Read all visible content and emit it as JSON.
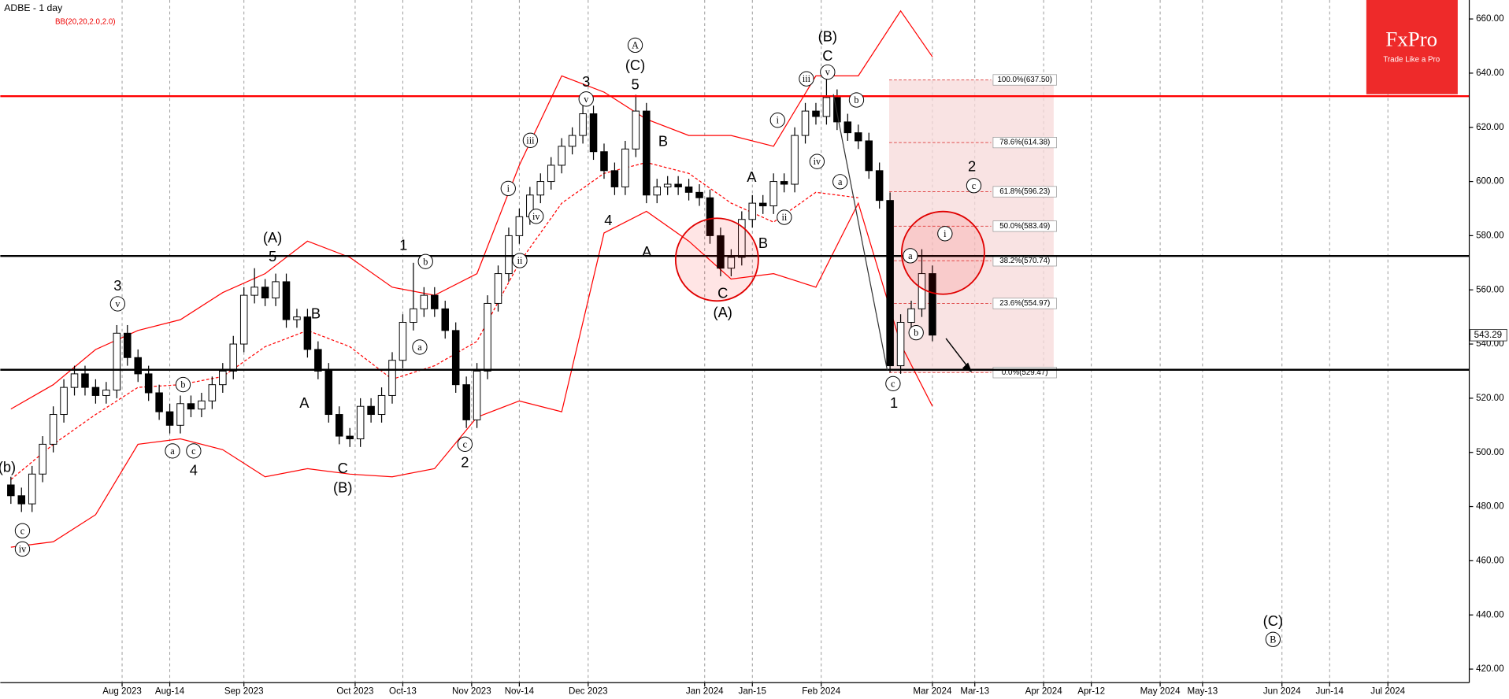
{
  "chart_data": {
    "type": "candlestick",
    "title": "ADBE - 1 day",
    "subtitle": "BB(20,20,2.0,2.0)",
    "logo": {
      "name": "FxPro",
      "tagline": "Trade Like a Pro",
      "color": "#ee2a2a"
    },
    "up_color": "#ffffff",
    "down_color": "#000000",
    "x": [
      "2023-07-03",
      "2023-07-05",
      "2023-07-07",
      "2023-07-11",
      "2023-07-13",
      "2023-07-17",
      "2023-07-19",
      "2023-07-21",
      "2023-07-25",
      "2023-07-27",
      "2023-07-31",
      "2023-08-02",
      "2023-08-04",
      "2023-08-08",
      "2023-08-10",
      "2023-08-14",
      "2023-08-16",
      "2023-08-18",
      "2023-08-22",
      "2023-08-24",
      "2023-08-28",
      "2023-08-30",
      "2023-09-01",
      "2023-09-05",
      "2023-09-07",
      "2023-09-11",
      "2023-09-13",
      "2023-09-15",
      "2023-09-19",
      "2023-09-21",
      "2023-09-25",
      "2023-09-27",
      "2023-09-29",
      "2023-10-03",
      "2023-10-05",
      "2023-10-09",
      "2023-10-11",
      "2023-10-13",
      "2023-10-17",
      "2023-10-19",
      "2023-10-23",
      "2023-10-25",
      "2023-10-27",
      "2023-10-31",
      "2023-11-02",
      "2023-11-06",
      "2023-11-08",
      "2023-11-10",
      "2023-11-14",
      "2023-11-16",
      "2023-11-20",
      "2023-11-22",
      "2023-11-24",
      "2023-11-28",
      "2023-11-30",
      "2023-12-04",
      "2023-12-06",
      "2023-12-08",
      "2023-12-12",
      "2023-12-14",
      "2023-12-18",
      "2023-12-20",
      "2023-12-22",
      "2023-12-26",
      "2023-12-28",
      "2024-01-01",
      "2024-01-03",
      "2024-01-05",
      "2024-01-09",
      "2024-01-11",
      "2024-01-15",
      "2024-01-17",
      "2024-01-19",
      "2024-01-23",
      "2024-01-25",
      "2024-01-29",
      "2024-01-31",
      "2024-02-02",
      "2024-02-06",
      "2024-02-08",
      "2024-02-12",
      "2024-02-14",
      "2024-02-16",
      "2024-02-20",
      "2024-02-22",
      "2024-02-26",
      "2024-02-28",
      "2024-03-01"
    ],
    "open": [
      488,
      484,
      481,
      492,
      503,
      514,
      524,
      529,
      524,
      521,
      523,
      544,
      535,
      529,
      522,
      515,
      510,
      518,
      516,
      519,
      525,
      530,
      540,
      558,
      561,
      557,
      563,
      549,
      550,
      538,
      530,
      514,
      506,
      505,
      517,
      514,
      521,
      534,
      548,
      553,
      558,
      553,
      545,
      525,
      512,
      530,
      555,
      566,
      580,
      587,
      595,
      600,
      606,
      613,
      617,
      625,
      611,
      604,
      598,
      612,
      626,
      595,
      598,
      599,
      598,
      596,
      594,
      580,
      568,
      572,
      586,
      592,
      591,
      600,
      599,
      617,
      626,
      624,
      631,
      622,
      618,
      615,
      604,
      593,
      532,
      548,
      553,
      566
    ],
    "high": [
      491,
      487,
      495,
      506,
      517,
      527,
      532,
      532,
      527,
      526,
      547,
      547,
      538,
      532,
      525,
      518,
      521,
      521,
      522,
      528,
      533,
      543,
      561,
      568,
      564,
      566,
      566,
      553,
      553,
      541,
      533,
      517,
      509,
      520,
      520,
      524,
      537,
      551,
      570,
      561,
      561,
      556,
      548,
      528,
      533,
      558,
      569,
      583,
      590,
      598,
      603,
      609,
      616,
      620,
      628,
      628,
      614,
      607,
      615,
      632,
      629,
      601,
      602,
      602,
      601,
      599,
      597,
      583,
      575,
      589,
      595,
      595,
      603,
      603,
      620,
      629,
      629,
      638,
      634,
      625,
      621,
      618,
      607,
      596,
      551,
      556,
      575,
      569
    ],
    "low": [
      481,
      478,
      478,
      489,
      500,
      511,
      521,
      521,
      518,
      518,
      520,
      532,
      526,
      519,
      512,
      507,
      507,
      513,
      513,
      516,
      522,
      527,
      537,
      555,
      554,
      554,
      546,
      546,
      535,
      527,
      511,
      503,
      502,
      502,
      511,
      511,
      518,
      531,
      545,
      550,
      550,
      542,
      522,
      509,
      509,
      527,
      552,
      563,
      577,
      584,
      592,
      597,
      603,
      610,
      614,
      608,
      601,
      595,
      595,
      609,
      592,
      592,
      595,
      595,
      593,
      591,
      577,
      565,
      565,
      569,
      583,
      588,
      588,
      596,
      596,
      614,
      621,
      621,
      619,
      615,
      612,
      601,
      590,
      529.47,
      529,
      545,
      550,
      541
    ],
    "close": [
      484,
      481,
      492,
      503,
      514,
      524,
      529,
      524,
      521,
      523,
      544,
      535,
      529,
      522,
      515,
      510,
      518,
      516,
      519,
      525,
      530,
      540,
      558,
      561,
      557,
      563,
      549,
      550,
      538,
      530,
      514,
      506,
      505,
      517,
      514,
      521,
      534,
      548,
      553,
      558,
      553,
      545,
      525,
      512,
      530,
      555,
      566,
      580,
      587,
      595,
      600,
      606,
      613,
      617,
      625,
      611,
      604,
      598,
      612,
      626,
      595,
      598,
      599,
      598,
      596,
      594,
      580,
      568,
      572,
      586,
      592,
      591,
      600,
      599,
      617,
      626,
      624,
      631,
      622,
      618,
      615,
      604,
      593,
      532,
      548,
      553,
      566,
      543.29
    ],
    "bands": {
      "color": "#ff0000",
      "x": [
        "2023-07-03",
        "2023-07-13",
        "2023-07-25",
        "2023-08-04",
        "2023-08-16",
        "2023-08-28",
        "2023-09-07",
        "2023-09-19",
        "2023-09-29",
        "2023-10-11",
        "2023-10-23",
        "2023-11-02",
        "2023-11-14",
        "2023-11-24",
        "2023-12-06",
        "2023-12-18",
        "2023-12-28",
        "2024-01-09",
        "2024-01-19",
        "2024-01-31",
        "2024-02-12",
        "2024-02-22",
        "2024-03-01"
      ],
      "upper": [
        516,
        525,
        538,
        545,
        549,
        559,
        566,
        578,
        572,
        561,
        558,
        566,
        606,
        639,
        633,
        623,
        617,
        617,
        613,
        639,
        639,
        663,
        646
      ],
      "middle": [
        490,
        503,
        514,
        524,
        525,
        528,
        539,
        545,
        539,
        527,
        532,
        541,
        570,
        592,
        603,
        607,
        603,
        592,
        585,
        596,
        594,
        null,
        null
      ],
      "lower": [
        465,
        467,
        477,
        503,
        505,
        501,
        491,
        494,
        492,
        491,
        494,
        513,
        519,
        515,
        581,
        589,
        578,
        564,
        566,
        561,
        592,
        540,
        517
      ]
    },
    "hlines": [
      {
        "value": 631.5,
        "color": "#ff0000"
      },
      {
        "value": 572.5,
        "color": "#000000"
      },
      {
        "value": 530.5,
        "color": "#000000"
      }
    ],
    "fib": {
      "color": "#f7d9d9",
      "line_color": "#e05050",
      "levels": [
        {
          "value": 637.5,
          "label": "100.0%(637.50)"
        },
        {
          "value": 614.38,
          "label": "78.6%(614.38)"
        },
        {
          "value": 596.23,
          "label": "61.8%(596.23)"
        },
        {
          "value": 583.49,
          "label": "50.0%(583.49)"
        },
        {
          "value": 570.74,
          "label": "38.2%(570.74)"
        },
        {
          "value": 554.97,
          "label": "23.6%(554.97)"
        },
        {
          "value": 529.47,
          "label": "0.0%(529.47)"
        }
      ]
    },
    "last_price": {
      "value": 543.29,
      "label": "543.29"
    },
    "annotations": [
      "(b)",
      "c",
      "iv",
      "3",
      "v",
      "b",
      "a",
      "c",
      "4",
      "(A)",
      "5",
      "B",
      "A",
      "C",
      "(B)",
      "1",
      "b",
      "a",
      "c",
      "2",
      "i",
      "iii",
      "iv",
      "ii",
      "3",
      "v",
      "4",
      "A",
      "(C)",
      "5",
      "B",
      "A",
      "C",
      "(A)",
      "A",
      "B",
      "i",
      "ii",
      "iii",
      "iv",
      "(B)",
      "C",
      "v",
      "b",
      "a",
      "c",
      "1",
      "a",
      "b",
      "i",
      "2",
      "c",
      "(C)",
      "B"
    ],
    "xlim": [
      "2023-06-29",
      "2024-07-22"
    ],
    "xticks": [
      {
        "value": "2023-08-01",
        "label": "Aug 2023"
      },
      {
        "value": "2023-08-14",
        "label": "Aug-14"
      },
      {
        "value": "2023-09-01",
        "label": "Sep 2023"
      },
      {
        "value": "2023-10-02",
        "label": "Oct 2023"
      },
      {
        "value": "2023-10-13",
        "label": "Oct-13"
      },
      {
        "value": "2023-11-01",
        "label": "Nov 2023"
      },
      {
        "value": "2023-11-14",
        "label": "Nov-14"
      },
      {
        "value": "2023-12-01",
        "label": "Dec 2023"
      },
      {
        "value": "2024-01-02",
        "label": "Jan 2024"
      },
      {
        "value": "2024-01-15",
        "label": "Jan-15"
      },
      {
        "value": "2024-02-01",
        "label": "Feb 2024"
      },
      {
        "value": "2024-03-01",
        "label": "Mar 2024"
      },
      {
        "value": "2024-03-13",
        "label": "Mar-13"
      },
      {
        "value": "2024-04-01",
        "label": "Apr 2024"
      },
      {
        "value": "2024-04-12",
        "label": "Apr-12"
      },
      {
        "value": "2024-05-01",
        "label": "May 2024"
      },
      {
        "value": "2024-05-13",
        "label": "May-13"
      },
      {
        "value": "2024-06-03",
        "label": "Jun 2024"
      },
      {
        "value": "2024-06-14",
        "label": "Jun-14"
      },
      {
        "value": "2024-07-01",
        "label": "Jul 2024"
      }
    ],
    "ylim": [
      415,
      667
    ],
    "yticks": [
      {
        "value": 420,
        "label": "420.00"
      },
      {
        "value": 440,
        "label": "440.00"
      },
      {
        "value": 460,
        "label": "460.00"
      },
      {
        "value": 480,
        "label": "480.00"
      },
      {
        "value": 500,
        "label": "500.00"
      },
      {
        "value": 520,
        "label": "520.00"
      },
      {
        "value": 540,
        "label": "540.00"
      },
      {
        "value": 560,
        "label": "560.00"
      },
      {
        "value": 580,
        "label": "580.00"
      },
      {
        "value": 600,
        "label": "600.00"
      },
      {
        "value": 620,
        "label": "620.00"
      },
      {
        "value": 640,
        "label": "640.00"
      },
      {
        "value": 660,
        "label": "660.00"
      }
    ]
  }
}
